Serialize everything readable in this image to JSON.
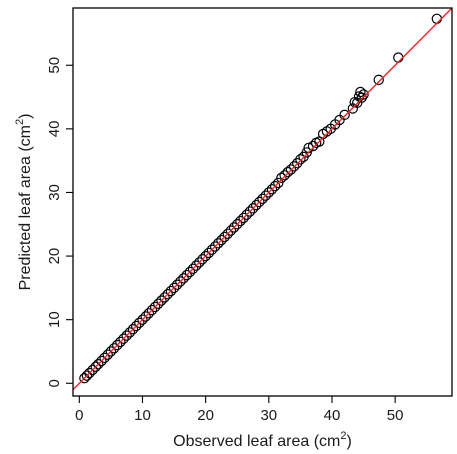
{
  "chart_data": {
    "type": "scatter",
    "title": "",
    "xlabel_main": "Observed leaf area (cm",
    "xlabel_sup": "2",
    "xlabel_close": ")",
    "ylabel_main": "Predicted leaf area (cm",
    "ylabel_sup": "2",
    "ylabel_close": ")",
    "xlim": [
      -1,
      59
    ],
    "ylim": [
      -2,
      59
    ],
    "x_ticks": [
      0,
      10,
      20,
      30,
      40,
      50
    ],
    "y_ticks": [
      0,
      10,
      20,
      30,
      40,
      50
    ],
    "grid": false,
    "legend": "none",
    "colors": {
      "points": "#000000",
      "line": "#e8262a",
      "axes": "#000000"
    },
    "reference_line": {
      "slope": 1,
      "intercept": 0,
      "color": "#e8262a"
    },
    "series": [
      {
        "marker": "open-circle",
        "color": "#000000",
        "points": [
          [
            0.8,
            0.8
          ],
          [
            1.2,
            1.2
          ],
          [
            1.6,
            1.6
          ],
          [
            2.1,
            2.1
          ],
          [
            2.6,
            2.6
          ],
          [
            3.0,
            3.0
          ],
          [
            3.5,
            3.5
          ],
          [
            4.0,
            4.0
          ],
          [
            4.5,
            4.5
          ],
          [
            5.0,
            5.0
          ],
          [
            5.5,
            5.5
          ],
          [
            6.0,
            6.0
          ],
          [
            6.5,
            6.5
          ],
          [
            7.0,
            7.0
          ],
          [
            7.5,
            7.5
          ],
          [
            8.0,
            8.0
          ],
          [
            8.5,
            8.5
          ],
          [
            9.0,
            9.0
          ],
          [
            9.5,
            9.5
          ],
          [
            10.0,
            10.0
          ],
          [
            10.5,
            10.5
          ],
          [
            11.0,
            11.0
          ],
          [
            11.5,
            11.5
          ],
          [
            12.0,
            12.0
          ],
          [
            12.5,
            12.5
          ],
          [
            13.0,
            13.0
          ],
          [
            13.5,
            13.5
          ],
          [
            14.0,
            14.0
          ],
          [
            14.5,
            14.5
          ],
          [
            15.0,
            15.0
          ],
          [
            15.5,
            15.5
          ],
          [
            16.0,
            16.0
          ],
          [
            16.5,
            16.5
          ],
          [
            17.0,
            17.0
          ],
          [
            17.5,
            17.5
          ],
          [
            18.0,
            18.0
          ],
          [
            18.5,
            18.5
          ],
          [
            19.0,
            19.0
          ],
          [
            19.5,
            19.5
          ],
          [
            20.0,
            20.0
          ],
          [
            20.5,
            20.5
          ],
          [
            21.0,
            21.0
          ],
          [
            21.5,
            21.5
          ],
          [
            22.0,
            22.0
          ],
          [
            22.5,
            22.5
          ],
          [
            23.0,
            23.0
          ],
          [
            23.5,
            23.5
          ],
          [
            24.0,
            24.0
          ],
          [
            24.5,
            24.5
          ],
          [
            25.0,
            25.0
          ],
          [
            25.5,
            25.5
          ],
          [
            26.0,
            26.0
          ],
          [
            26.5,
            26.5
          ],
          [
            27.0,
            27.0
          ],
          [
            27.5,
            27.5
          ],
          [
            28.0,
            28.0
          ],
          [
            28.5,
            28.5
          ],
          [
            29.0,
            29.0
          ],
          [
            29.5,
            29.5
          ],
          [
            30.0,
            30.0
          ],
          [
            30.5,
            30.5
          ],
          [
            31.0,
            31.0
          ],
          [
            31.5,
            31.5
          ],
          [
            32.0,
            32.3
          ],
          [
            32.5,
            32.7
          ],
          [
            33.0,
            33.2
          ],
          [
            33.5,
            33.6
          ],
          [
            34.0,
            34.1
          ],
          [
            34.5,
            34.6
          ],
          [
            35.0,
            35.2
          ],
          [
            35.5,
            35.6
          ],
          [
            36.0,
            36.3
          ],
          [
            36.3,
            37.0
          ],
          [
            37.0,
            37.3
          ],
          [
            37.5,
            37.8
          ],
          [
            38.0,
            38.0
          ],
          [
            38.6,
            39.2
          ],
          [
            39.2,
            39.6
          ],
          [
            39.8,
            40.0
          ],
          [
            40.5,
            40.7
          ],
          [
            41.2,
            41.4
          ],
          [
            42.0,
            42.2
          ],
          [
            43.3,
            43.2
          ],
          [
            43.6,
            44.2
          ],
          [
            44.0,
            44.1
          ],
          [
            44.3,
            45.1
          ],
          [
            44.5,
            45.8
          ],
          [
            44.7,
            44.9
          ],
          [
            45.0,
            45.4
          ],
          [
            47.4,
            47.7
          ],
          [
            50.5,
            51.2
          ],
          [
            56.6,
            57.3
          ]
        ]
      }
    ]
  }
}
